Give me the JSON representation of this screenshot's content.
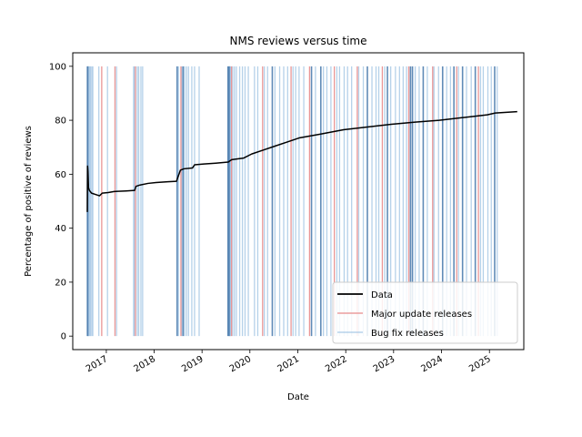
{
  "chart_data": {
    "type": "line",
    "title": "NMS reviews versus time",
    "xlabel": "Date",
    "ylabel": "Percentage of positive of reviews",
    "xlim": [
      "2016-04-20",
      "2025-09-20"
    ],
    "ylim": [
      -5,
      105
    ],
    "yticks": [
      0,
      20,
      40,
      60,
      80,
      100
    ],
    "xticks": [
      {
        "date": "2017-01-01",
        "label": "2017"
      },
      {
        "date": "2018-01-01",
        "label": "2018"
      },
      {
        "date": "2019-01-01",
        "label": "2019"
      },
      {
        "date": "2020-01-01",
        "label": "2020"
      },
      {
        "date": "2021-01-01",
        "label": "2021"
      },
      {
        "date": "2022-01-01",
        "label": "2022"
      },
      {
        "date": "2023-01-01",
        "label": "2023"
      },
      {
        "date": "2024-01-01",
        "label": "2024"
      },
      {
        "date": "2025-01-01",
        "label": "2025"
      }
    ],
    "grid": false,
    "legend": {
      "placement": "lower-right",
      "entries": [
        {
          "label": "Data",
          "color": "#000000"
        },
        {
          "label": "Major update releases",
          "color": "#e88b8b"
        },
        {
          "label": "Bug fix releases",
          "color": "#a9c9e6"
        }
      ]
    },
    "series": [
      {
        "name": "Data",
        "color": "#000000",
        "points": [
          [
            "2016-08-09",
            46
          ],
          [
            "2016-08-11",
            63
          ],
          [
            "2016-08-14",
            61
          ],
          [
            "2016-08-18",
            55
          ],
          [
            "2016-08-25",
            54
          ],
          [
            "2016-09-10",
            53
          ],
          [
            "2016-10-10",
            52.5
          ],
          [
            "2016-11-10",
            52
          ],
          [
            "2016-12-01",
            53
          ],
          [
            "2017-01-15",
            53.2
          ],
          [
            "2017-03-01",
            53.6
          ],
          [
            "2017-06-01",
            53.8
          ],
          [
            "2017-08-05",
            54
          ],
          [
            "2017-08-15",
            55.5
          ],
          [
            "2017-09-15",
            56
          ],
          [
            "2017-11-15",
            56.6
          ],
          [
            "2018-01-15",
            56.9
          ],
          [
            "2018-04-15",
            57.2
          ],
          [
            "2018-06-20",
            57.4
          ],
          [
            "2018-07-20",
            61.5
          ],
          [
            "2018-08-15",
            62
          ],
          [
            "2018-10-20",
            62.3
          ],
          [
            "2018-11-05",
            63.5
          ],
          [
            "2019-01-15",
            63.8
          ],
          [
            "2019-04-15",
            64.1
          ],
          [
            "2019-07-20",
            64.5
          ],
          [
            "2019-08-15",
            65.4
          ],
          [
            "2019-11-15",
            66
          ],
          [
            "2020-01-15",
            67.5
          ],
          [
            "2020-04-15",
            69
          ],
          [
            "2020-07-15",
            70.5
          ],
          [
            "2020-10-15",
            72
          ],
          [
            "2021-01-15",
            73.5
          ],
          [
            "2021-06-15",
            74.8
          ],
          [
            "2021-12-15",
            76.5
          ],
          [
            "2022-06-15",
            77.5
          ],
          [
            "2022-12-15",
            78.5
          ],
          [
            "2023-06-15",
            79.3
          ],
          [
            "2023-12-15",
            80
          ],
          [
            "2024-06-15",
            81
          ],
          [
            "2024-12-15",
            82
          ],
          [
            "2025-02-15",
            82.7
          ],
          [
            "2025-08-01",
            83.2
          ]
        ]
      }
    ],
    "vlines": {
      "major": {
        "name": "Major update releases",
        "color": "#e88b8b",
        "dates": [
          "2016-11-27",
          "2017-03-08",
          "2017-08-11",
          "2018-07-24",
          "2019-08-14",
          "2020-04-07",
          "2020-11-10",
          "2021-03-31",
          "2021-10-06",
          "2022-03-30",
          "2022-10-07",
          "2023-04-27",
          "2023-10-26",
          "2024-04-26",
          "2024-10-09"
        ]
      },
      "bugfix": {
        "name": "Bug fix releases",
        "color": "#a9c9e6",
        "dark_color": "#4f7fb0",
        "dates": [
          "2016-08-10",
          "2016-08-16",
          "2016-08-22",
          "2016-08-29",
          "2016-09-02",
          "2016-09-12",
          "2016-09-20",
          "2016-11-05",
          "2017-01-10",
          "2017-03-20",
          "2017-07-28",
          "2017-08-04",
          "2017-08-25",
          "2017-09-05",
          "2017-09-22",
          "2017-10-05",
          "2018-06-25",
          "2018-07-05",
          "2018-08-01",
          "2018-08-10",
          "2018-08-20",
          "2018-09-05",
          "2018-09-20",
          "2018-10-15",
          "2018-11-05",
          "2018-12-10",
          "2019-07-18",
          "2019-07-25",
          "2019-08-01",
          "2019-08-05",
          "2019-08-22",
          "2019-09-05",
          "2019-09-20",
          "2019-10-15",
          "2019-11-05",
          "2019-11-25",
          "2019-12-20",
          "2020-02-05",
          "2020-03-01",
          "2020-04-20",
          "2020-05-15",
          "2020-06-20",
          "2020-07-10",
          "2020-08-15",
          "2020-09-15",
          "2020-10-15",
          "2020-11-25",
          "2020-12-15",
          "2021-01-10",
          "2021-02-15",
          "2021-04-15",
          "2021-05-15",
          "2021-06-25",
          "2021-07-15",
          "2021-08-10",
          "2021-09-10",
          "2021-10-25",
          "2021-11-15",
          "2021-12-20",
          "2022-01-15",
          "2022-02-15",
          "2022-04-10",
          "2022-05-15",
          "2022-06-15",
          "2022-07-20",
          "2022-08-20",
          "2022-09-10",
          "2022-10-25",
          "2022-11-15",
          "2022-12-10",
          "2023-01-15",
          "2023-02-15",
          "2023-03-15",
          "2023-04-10",
          "2023-05-10",
          "2023-05-25",
          "2023-06-15",
          "2023-07-15",
          "2023-08-15",
          "2023-09-15",
          "2023-11-05",
          "2023-12-10",
          "2024-01-10",
          "2024-02-10",
          "2024-03-10",
          "2024-04-05",
          "2024-05-10",
          "2024-06-10",
          "2024-07-10",
          "2024-08-15",
          "2024-09-15",
          "2024-10-25",
          "2024-11-15",
          "2024-12-20",
          "2025-01-15",
          "2025-02-10",
          "2025-03-01"
        ],
        "dark_dates": [
          "2016-08-10",
          "2016-08-16",
          "2018-06-25",
          "2018-08-10",
          "2019-07-18",
          "2019-07-25",
          "2019-08-01",
          "2020-06-20",
          "2021-04-15",
          "2021-06-25",
          "2022-06-15",
          "2022-11-15",
          "2023-05-10",
          "2023-05-25",
          "2023-08-15",
          "2024-01-10",
          "2024-04-05",
          "2024-06-10",
          "2024-09-15",
          "2025-02-10"
        ]
      }
    }
  }
}
